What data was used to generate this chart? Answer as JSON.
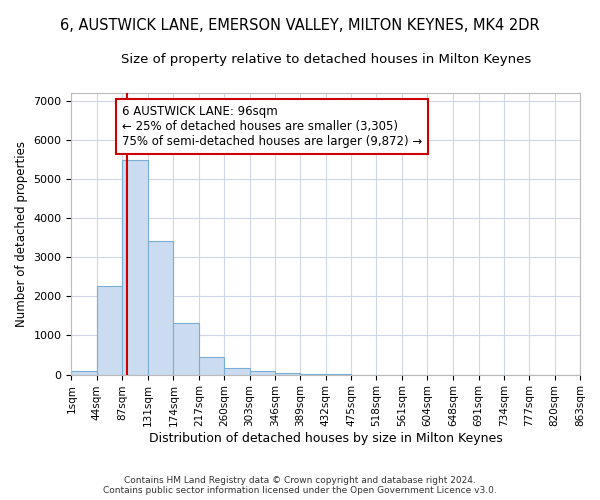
{
  "title": "6, AUSTWICK LANE, EMERSON VALLEY, MILTON KEYNES, MK4 2DR",
  "subtitle": "Size of property relative to detached houses in Milton Keynes",
  "xlabel": "Distribution of detached houses by size in Milton Keynes",
  "ylabel": "Number of detached properties",
  "footer_line1": "Contains HM Land Registry data © Crown copyright and database right 2024.",
  "footer_line2": "Contains public sector information licensed under the Open Government Licence v3.0.",
  "bin_edges": [
    1,
    44,
    87,
    131,
    174,
    217,
    260,
    303,
    346,
    389,
    432,
    475,
    518,
    561,
    604,
    648,
    691,
    734,
    777,
    820,
    863
  ],
  "bar_heights": [
    100,
    2270,
    5480,
    3420,
    1330,
    460,
    175,
    95,
    50,
    5,
    5,
    2,
    0,
    0,
    0,
    0,
    0,
    0,
    0,
    0
  ],
  "bar_color": "#ccdcf0",
  "bar_edge_color": "#7aadd4",
  "property_size": 96,
  "vline_color": "#cc0000",
  "annotation_text": "6 AUSTWICK LANE: 96sqm\n← 25% of detached houses are smaller (3,305)\n75% of semi-detached houses are larger (9,872) →",
  "annotation_bbox_color": "#ffffff",
  "annotation_bbox_edge": "#cc0000",
  "ylim": [
    0,
    7200
  ],
  "background_color": "#ffffff",
  "plot_bg_color": "#ffffff",
  "title_fontsize": 10.5,
  "subtitle_fontsize": 9.5,
  "tick_labels": [
    "1sqm",
    "44sqm",
    "87sqm",
    "131sqm",
    "174sqm",
    "217sqm",
    "260sqm",
    "303sqm",
    "346sqm",
    "389sqm",
    "432sqm",
    "475sqm",
    "518sqm",
    "561sqm",
    "604sqm",
    "648sqm",
    "691sqm",
    "734sqm",
    "777sqm",
    "820sqm",
    "863sqm"
  ],
  "yticks": [
    0,
    1000,
    2000,
    3000,
    4000,
    5000,
    6000,
    7000
  ],
  "grid_color": "#d0d8e8"
}
